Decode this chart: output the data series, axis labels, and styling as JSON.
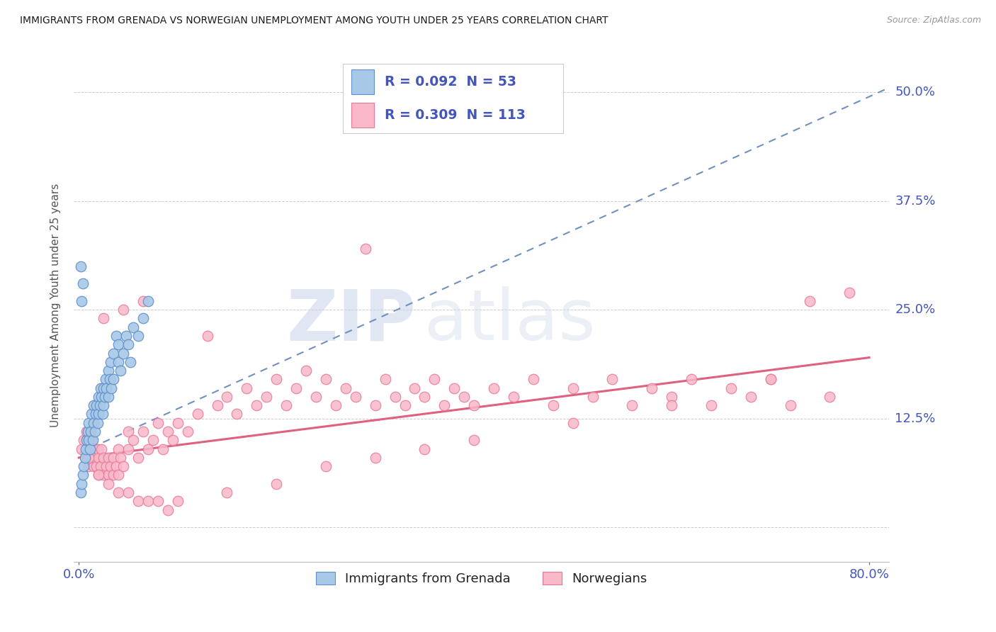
{
  "title": "IMMIGRANTS FROM GRENADA VS NORWEGIAN UNEMPLOYMENT AMONG YOUTH UNDER 25 YEARS CORRELATION CHART",
  "source": "Source: ZipAtlas.com",
  "ylabel": "Unemployment Among Youth under 25 years",
  "ytick_vals": [
    0.0,
    0.125,
    0.25,
    0.375,
    0.5
  ],
  "ytick_labels": [
    "",
    "12.5%",
    "25.0%",
    "37.5%",
    "50.0%"
  ],
  "xlim": [
    -0.005,
    0.82
  ],
  "ylim": [
    -0.04,
    0.55
  ],
  "blue_face": "#a8c8e8",
  "blue_edge": "#6090c8",
  "pink_face": "#f8b8c8",
  "pink_edge": "#e87898",
  "trend_blue": "#7090c0",
  "trend_pink": "#e06080",
  "label_color": "#4455bb",
  "watermark_zip_color": "#d0d8e8",
  "watermark_atlas_color": "#c0cce0",
  "blue_x": [
    0.002,
    0.003,
    0.004,
    0.005,
    0.006,
    0.007,
    0.008,
    0.009,
    0.01,
    0.01,
    0.011,
    0.012,
    0.013,
    0.014,
    0.015,
    0.015,
    0.016,
    0.017,
    0.018,
    0.019,
    0.02,
    0.02,
    0.021,
    0.022,
    0.023,
    0.024,
    0.025,
    0.025,
    0.026,
    0.027,
    0.028,
    0.03,
    0.03,
    0.031,
    0.032,
    0.033,
    0.035,
    0.035,
    0.038,
    0.04,
    0.04,
    0.042,
    0.045,
    0.048,
    0.05,
    0.052,
    0.055,
    0.06,
    0.065,
    0.07,
    0.003,
    0.004,
    0.002
  ],
  "blue_y": [
    0.04,
    0.05,
    0.06,
    0.07,
    0.08,
    0.09,
    0.1,
    0.11,
    0.1,
    0.12,
    0.09,
    0.11,
    0.13,
    0.1,
    0.12,
    0.14,
    0.11,
    0.13,
    0.14,
    0.12,
    0.15,
    0.13,
    0.14,
    0.16,
    0.15,
    0.13,
    0.16,
    0.14,
    0.15,
    0.17,
    0.16,
    0.18,
    0.15,
    0.17,
    0.19,
    0.16,
    0.2,
    0.17,
    0.22,
    0.19,
    0.21,
    0.18,
    0.2,
    0.22,
    0.21,
    0.19,
    0.23,
    0.22,
    0.24,
    0.26,
    0.26,
    0.28,
    0.3
  ],
  "pink_x": [
    0.003,
    0.005,
    0.007,
    0.008,
    0.01,
    0.01,
    0.012,
    0.013,
    0.015,
    0.015,
    0.016,
    0.018,
    0.019,
    0.02,
    0.02,
    0.022,
    0.023,
    0.025,
    0.025,
    0.028,
    0.03,
    0.03,
    0.032,
    0.035,
    0.035,
    0.038,
    0.04,
    0.04,
    0.042,
    0.045,
    0.05,
    0.05,
    0.055,
    0.06,
    0.065,
    0.07,
    0.075,
    0.08,
    0.085,
    0.09,
    0.095,
    0.1,
    0.11,
    0.12,
    0.13,
    0.14,
    0.15,
    0.16,
    0.17,
    0.18,
    0.19,
    0.2,
    0.21,
    0.22,
    0.23,
    0.24,
    0.25,
    0.26,
    0.27,
    0.28,
    0.29,
    0.3,
    0.31,
    0.32,
    0.33,
    0.34,
    0.35,
    0.36,
    0.37,
    0.38,
    0.39,
    0.4,
    0.42,
    0.44,
    0.46,
    0.48,
    0.5,
    0.52,
    0.54,
    0.56,
    0.58,
    0.6,
    0.62,
    0.64,
    0.66,
    0.68,
    0.7,
    0.72,
    0.74,
    0.76,
    0.78,
    0.01,
    0.02,
    0.03,
    0.04,
    0.05,
    0.06,
    0.07,
    0.08,
    0.09,
    0.1,
    0.15,
    0.2,
    0.25,
    0.3,
    0.35,
    0.4,
    0.5,
    0.6,
    0.7,
    0.025,
    0.045,
    0.065
  ],
  "pink_y": [
    0.09,
    0.1,
    0.08,
    0.11,
    0.07,
    0.09,
    0.08,
    0.1,
    0.07,
    0.09,
    0.08,
    0.07,
    0.09,
    0.06,
    0.08,
    0.07,
    0.09,
    0.06,
    0.08,
    0.07,
    0.06,
    0.08,
    0.07,
    0.06,
    0.08,
    0.07,
    0.09,
    0.06,
    0.08,
    0.07,
    0.09,
    0.11,
    0.1,
    0.08,
    0.11,
    0.09,
    0.1,
    0.12,
    0.09,
    0.11,
    0.1,
    0.12,
    0.11,
    0.13,
    0.22,
    0.14,
    0.15,
    0.13,
    0.16,
    0.14,
    0.15,
    0.17,
    0.14,
    0.16,
    0.18,
    0.15,
    0.17,
    0.14,
    0.16,
    0.15,
    0.32,
    0.14,
    0.17,
    0.15,
    0.14,
    0.16,
    0.15,
    0.17,
    0.14,
    0.16,
    0.15,
    0.14,
    0.16,
    0.15,
    0.17,
    0.14,
    0.16,
    0.15,
    0.17,
    0.14,
    0.16,
    0.15,
    0.17,
    0.14,
    0.16,
    0.15,
    0.17,
    0.14,
    0.26,
    0.15,
    0.27,
    0.08,
    0.06,
    0.05,
    0.04,
    0.04,
    0.03,
    0.03,
    0.03,
    0.02,
    0.03,
    0.04,
    0.05,
    0.07,
    0.08,
    0.09,
    0.1,
    0.12,
    0.14,
    0.17,
    0.24,
    0.25,
    0.26
  ]
}
